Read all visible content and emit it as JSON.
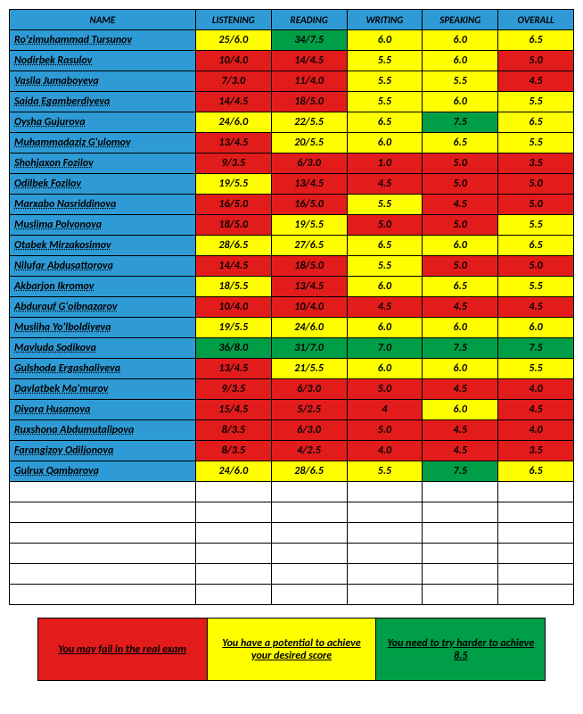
{
  "colors": {
    "header": "#2e9bd6",
    "red": "#e21b1b",
    "yellow": "#ffff00",
    "green": "#009e47",
    "border": "#000000",
    "text": "#000000"
  },
  "headers": [
    "NAME",
    "LISTENING",
    "READING",
    "WRITING",
    "SPEAKING",
    "OVERALL"
  ],
  "rows": [
    {
      "name": "Ro'zimuhammad Tursunov",
      "cells": [
        {
          "v": "25/6.0",
          "c": "yellow"
        },
        {
          "v": "34/7.5",
          "c": "green"
        },
        {
          "v": "6.0",
          "c": "yellow"
        },
        {
          "v": "6.0",
          "c": "yellow"
        },
        {
          "v": "6.5",
          "c": "yellow"
        }
      ]
    },
    {
      "name": "Nodirbek Rasulov",
      "cells": [
        {
          "v": "10/4.0",
          "c": "red"
        },
        {
          "v": "14/4.5",
          "c": "red"
        },
        {
          "v": "5.5",
          "c": "yellow"
        },
        {
          "v": "6.0",
          "c": "yellow"
        },
        {
          "v": "5.0",
          "c": "red"
        }
      ]
    },
    {
      "name": "Vasila Jumaboyeva",
      "cells": [
        {
          "v": "7/3.0",
          "c": "red"
        },
        {
          "v": "11/4.0",
          "c": "red"
        },
        {
          "v": "5.5",
          "c": "yellow"
        },
        {
          "v": "5.5",
          "c": "yellow"
        },
        {
          "v": "4.5",
          "c": "red"
        }
      ]
    },
    {
      "name": "Saida Egamberdiyeva",
      "cells": [
        {
          "v": "14/4.5",
          "c": "red"
        },
        {
          "v": "18/5.0",
          "c": "red"
        },
        {
          "v": "5.5",
          "c": "yellow"
        },
        {
          "v": "6.0",
          "c": "yellow"
        },
        {
          "v": "5.5",
          "c": "yellow"
        }
      ]
    },
    {
      "name": "Oysha Gujurova",
      "cells": [
        {
          "v": "24/6.0",
          "c": "yellow"
        },
        {
          "v": "22/5.5",
          "c": "yellow"
        },
        {
          "v": "6.5",
          "c": "yellow"
        },
        {
          "v": "7.5",
          "c": "green"
        },
        {
          "v": "6.5",
          "c": "yellow"
        }
      ]
    },
    {
      "name": "Muhammadaziz G'ulomov",
      "cells": [
        {
          "v": "13/4.5",
          "c": "red"
        },
        {
          "v": "20/5.5",
          "c": "yellow"
        },
        {
          "v": "6.0",
          "c": "yellow"
        },
        {
          "v": "6.5",
          "c": "yellow"
        },
        {
          "v": "5.5",
          "c": "yellow"
        }
      ]
    },
    {
      "name": "Shohjaxon Fozilov",
      "cells": [
        {
          "v": "9/3.5",
          "c": "red"
        },
        {
          "v": "6/3.0",
          "c": "red"
        },
        {
          "v": "1.0",
          "c": "red"
        },
        {
          "v": "5.0",
          "c": "red"
        },
        {
          "v": "3.5",
          "c": "red"
        }
      ]
    },
    {
      "name": "Odilbek Fozilov",
      "cells": [
        {
          "v": "19/5.5",
          "c": "yellow"
        },
        {
          "v": "13/4.5",
          "c": "red"
        },
        {
          "v": "4.5",
          "c": "red"
        },
        {
          "v": "5.0",
          "c": "red"
        },
        {
          "v": "5.0",
          "c": "red"
        }
      ]
    },
    {
      "name": "Marxabo Nasriddinova",
      "cells": [
        {
          "v": "16/5.0",
          "c": "red"
        },
        {
          "v": "16/5.0",
          "c": "red"
        },
        {
          "v": "5.5",
          "c": "yellow"
        },
        {
          "v": "4.5",
          "c": "red"
        },
        {
          "v": "5.0",
          "c": "red"
        }
      ]
    },
    {
      "name": "Muslima Polvonova",
      "cells": [
        {
          "v": "18/5.0",
          "c": "red"
        },
        {
          "v": "19/5.5",
          "c": "yellow"
        },
        {
          "v": "5.0",
          "c": "red"
        },
        {
          "v": "5.0",
          "c": "red"
        },
        {
          "v": "5.5",
          "c": "yellow"
        }
      ]
    },
    {
      "name": "Otabek Mirzakosimov",
      "cells": [
        {
          "v": "28/6.5",
          "c": "yellow"
        },
        {
          "v": "27/6.5",
          "c": "yellow"
        },
        {
          "v": "6.5",
          "c": "yellow"
        },
        {
          "v": "6.0",
          "c": "yellow"
        },
        {
          "v": "6.5",
          "c": "yellow"
        }
      ]
    },
    {
      "name": "Nilufar Abdusattorova",
      "cells": [
        {
          "v": "14/4.5",
          "c": "red"
        },
        {
          "v": "18/5.0",
          "c": "red"
        },
        {
          "v": "5.5",
          "c": "yellow"
        },
        {
          "v": "5.0",
          "c": "red"
        },
        {
          "v": "5.0",
          "c": "red"
        }
      ]
    },
    {
      "name": "Akbarjon Ikromov",
      "cells": [
        {
          "v": "18/5.5",
          "c": "yellow"
        },
        {
          "v": "13/4.5",
          "c": "red"
        },
        {
          "v": "6.0",
          "c": "yellow"
        },
        {
          "v": "6.5",
          "c": "yellow"
        },
        {
          "v": "5.5",
          "c": "yellow"
        }
      ]
    },
    {
      "name": "Abdurauf G'oibnazarov",
      "cells": [
        {
          "v": "10/4.0",
          "c": "red"
        },
        {
          "v": "10/4.0",
          "c": "red"
        },
        {
          "v": "4.5",
          "c": "red"
        },
        {
          "v": "4.5",
          "c": "red"
        },
        {
          "v": "4.5",
          "c": "red"
        }
      ]
    },
    {
      "name": "Musliha Yo'lboldiyeva",
      "cells": [
        {
          "v": "19/5.5",
          "c": "yellow"
        },
        {
          "v": "24/6.0",
          "c": "yellow"
        },
        {
          "v": "6.0",
          "c": "yellow"
        },
        {
          "v": "6.0",
          "c": "yellow"
        },
        {
          "v": "6.0",
          "c": "yellow"
        }
      ]
    },
    {
      "name": "Mavluda Sodikova",
      "cells": [
        {
          "v": "36/8.0",
          "c": "green"
        },
        {
          "v": "31/7.0",
          "c": "green"
        },
        {
          "v": "7.0",
          "c": "green"
        },
        {
          "v": "7.5",
          "c": "green"
        },
        {
          "v": "7.5",
          "c": "green"
        }
      ]
    },
    {
      "name": "Gulshoda Ergashaliyeva",
      "cells": [
        {
          "v": "13/4.5",
          "c": "red"
        },
        {
          "v": "21/5.5",
          "c": "yellow"
        },
        {
          "v": "6.0",
          "c": "yellow"
        },
        {
          "v": "6.0",
          "c": "yellow"
        },
        {
          "v": "5.5",
          "c": "yellow"
        }
      ]
    },
    {
      "name": "Davlatbek Ma'murov",
      "cells": [
        {
          "v": "9/3.5",
          "c": "red"
        },
        {
          "v": "6/3.0",
          "c": "red"
        },
        {
          "v": "5.0",
          "c": "red"
        },
        {
          "v": "4.5",
          "c": "red"
        },
        {
          "v": "4.0",
          "c": "red"
        }
      ]
    },
    {
      "name": "Diyora Husanova",
      "cells": [
        {
          "v": "15/4.5",
          "c": "red"
        },
        {
          "v": "5/2.5",
          "c": "red"
        },
        {
          "v": "4",
          "c": "red"
        },
        {
          "v": "6.0",
          "c": "yellow"
        },
        {
          "v": "4.5",
          "c": "red"
        }
      ]
    },
    {
      "name": "Ruxshona Abdumutalipova",
      "cells": [
        {
          "v": "8/3.5",
          "c": "red"
        },
        {
          "v": "6/3.0",
          "c": "red"
        },
        {
          "v": "5.0",
          "c": "red"
        },
        {
          "v": "4.5",
          "c": "red"
        },
        {
          "v": "4.0",
          "c": "red"
        }
      ]
    },
    {
      "name": "Farangizoy Odiljonova",
      "cells": [
        {
          "v": "8/3.5",
          "c": "red"
        },
        {
          "v": "4/2.5",
          "c": "red"
        },
        {
          "v": "4.0",
          "c": "red"
        },
        {
          "v": "4.5",
          "c": "red"
        },
        {
          "v": "3.5",
          "c": "red"
        }
      ]
    },
    {
      "name": "Gulrux Qambarova",
      "cells": [
        {
          "v": "24/6.0",
          "c": "yellow"
        },
        {
          "v": "28/6.5",
          "c": "yellow"
        },
        {
          "v": "5.5",
          "c": "yellow"
        },
        {
          "v": "7.5",
          "c": "green"
        },
        {
          "v": "6.5",
          "c": "yellow"
        }
      ]
    }
  ],
  "empty_rows": 6,
  "legend": [
    {
      "text": "You may fail in the real exam",
      "c": "red"
    },
    {
      "text": "You have a potential to achieve your desired score",
      "c": "yellow"
    },
    {
      "text": "You need to try harder to achieve 8.5",
      "c": "green"
    }
  ]
}
